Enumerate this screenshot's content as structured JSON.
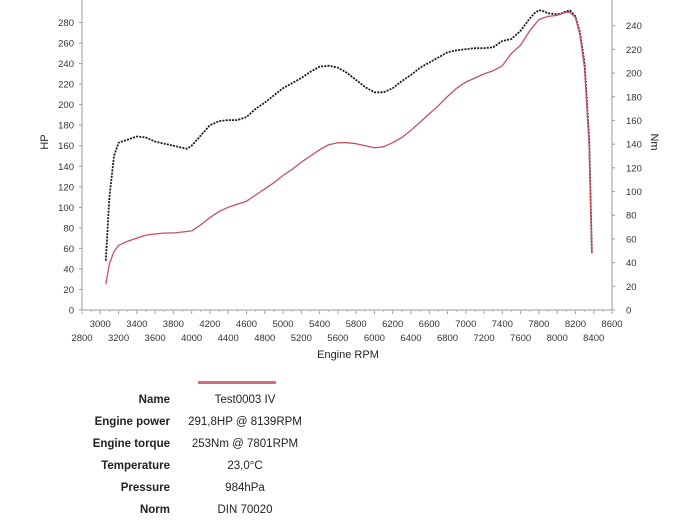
{
  "chart_data": {
    "type": "line",
    "xlabel": "Engine RPM",
    "ylabel_left": "HP",
    "ylabel_right": "Nm",
    "xlim": [
      2800,
      8600
    ],
    "ylim_left": [
      0,
      300
    ],
    "ylim_right": [
      0,
      260
    ],
    "x_ticks_top": [
      "3000",
      "3400",
      "3800",
      "4200",
      "4600",
      "5000",
      "5400",
      "5800",
      "6200",
      "6600",
      "7000",
      "7400",
      "7800",
      "8200",
      "8600"
    ],
    "x_ticks_bottom": [
      "2800",
      "3200",
      "3600",
      "4000",
      "4400",
      "4800",
      "5200",
      "5600",
      "6000",
      "6400",
      "6800",
      "7200",
      "7600",
      "8000",
      "8400"
    ],
    "y_ticks_left": [
      "0",
      "20",
      "40",
      "60",
      "80",
      "100",
      "120",
      "140",
      "160",
      "180",
      "200",
      "220",
      "240",
      "260",
      "280"
    ],
    "y_ticks_right": [
      "0",
      "20",
      "40",
      "60",
      "80",
      "100",
      "120",
      "140",
      "160",
      "180",
      "200",
      "220",
      "240"
    ],
    "series": [
      {
        "axis": "left",
        "color": "#1a1a1a",
        "x": [
          3060,
          3100,
          3150,
          3200,
          3300,
          3400,
          3500,
          3600,
          3700,
          3800,
          3900,
          3950,
          4000,
          4100,
          4200,
          4300,
          4400,
          4500,
          4600,
          4700,
          4800,
          4900,
          5000,
          5100,
          5200,
          5300,
          5400,
          5500,
          5600,
          5700,
          5800,
          5900,
          6000,
          6100,
          6200,
          6300,
          6400,
          6500,
          6600,
          6700,
          6800,
          6900,
          7000,
          7100,
          7200,
          7300,
          7400,
          7500,
          7600,
          7700,
          7750,
          7800,
          7850,
          7900,
          8000,
          8050,
          8100,
          8139,
          8200,
          8250,
          8300,
          8350,
          8380
        ],
        "values": [
          48,
          110,
          150,
          163,
          166,
          169,
          168,
          164,
          162,
          160,
          158,
          157,
          160,
          170,
          180,
          184,
          185,
          185,
          188,
          196,
          202,
          209,
          216,
          221,
          226,
          232,
          237,
          238,
          236,
          231,
          224,
          217,
          212,
          212,
          216,
          223,
          229,
          236,
          241,
          246,
          251,
          253,
          254,
          255,
          255,
          256,
          262,
          264,
          272,
          284,
          289,
          292,
          291,
          289,
          288,
          289,
          291,
          291.8,
          286,
          270,
          240,
          165,
          55
        ]
      },
      {
        "axis": "left",
        "color": "#c8505f",
        "x": [
          3060,
          3100,
          3150,
          3200,
          3300,
          3400,
          3500,
          3600,
          3700,
          3800,
          3900,
          4000,
          4100,
          4200,
          4300,
          4400,
          4500,
          4600,
          4700,
          4800,
          4900,
          5000,
          5100,
          5200,
          5300,
          5400,
          5500,
          5600,
          5700,
          5800,
          5900,
          6000,
          6100,
          6200,
          6300,
          6400,
          6500,
          6600,
          6700,
          6800,
          6900,
          7000,
          7100,
          7200,
          7300,
          7400,
          7500,
          7600,
          7700,
          7800,
          7900,
          8000,
          8100,
          8139,
          8200,
          8250,
          8300,
          8350,
          8380
        ],
        "values": [
          25,
          45,
          57,
          63,
          67,
          70,
          73,
          74,
          75,
          75,
          76,
          77,
          83,
          90,
          96,
          100,
          103,
          106,
          112,
          118,
          124,
          131,
          137,
          144,
          150,
          156,
          161,
          163,
          163,
          162,
          160,
          158,
          159,
          163,
          168,
          175,
          183,
          191,
          199,
          208,
          216,
          222,
          226,
          230,
          233,
          238,
          250,
          258,
          272,
          283,
          286,
          287,
          290,
          290,
          285,
          268,
          235,
          160,
          55
        ]
      }
    ]
  },
  "legend": {
    "swatch_color": "#d96a7c"
  },
  "info": {
    "rows": [
      {
        "label": "Name",
        "value": "Test0003 IV"
      },
      {
        "label": "Engine power",
        "value": "291,8HP @  8139RPM"
      },
      {
        "label": "Engine torque",
        "value": "253Nm @ 7801RPM"
      },
      {
        "label": "Temperature",
        "value": "23,0°C"
      },
      {
        "label": "Pressure",
        "value": "984hPa"
      },
      {
        "label": "Norm",
        "value": "DIN 70020"
      }
    ]
  }
}
